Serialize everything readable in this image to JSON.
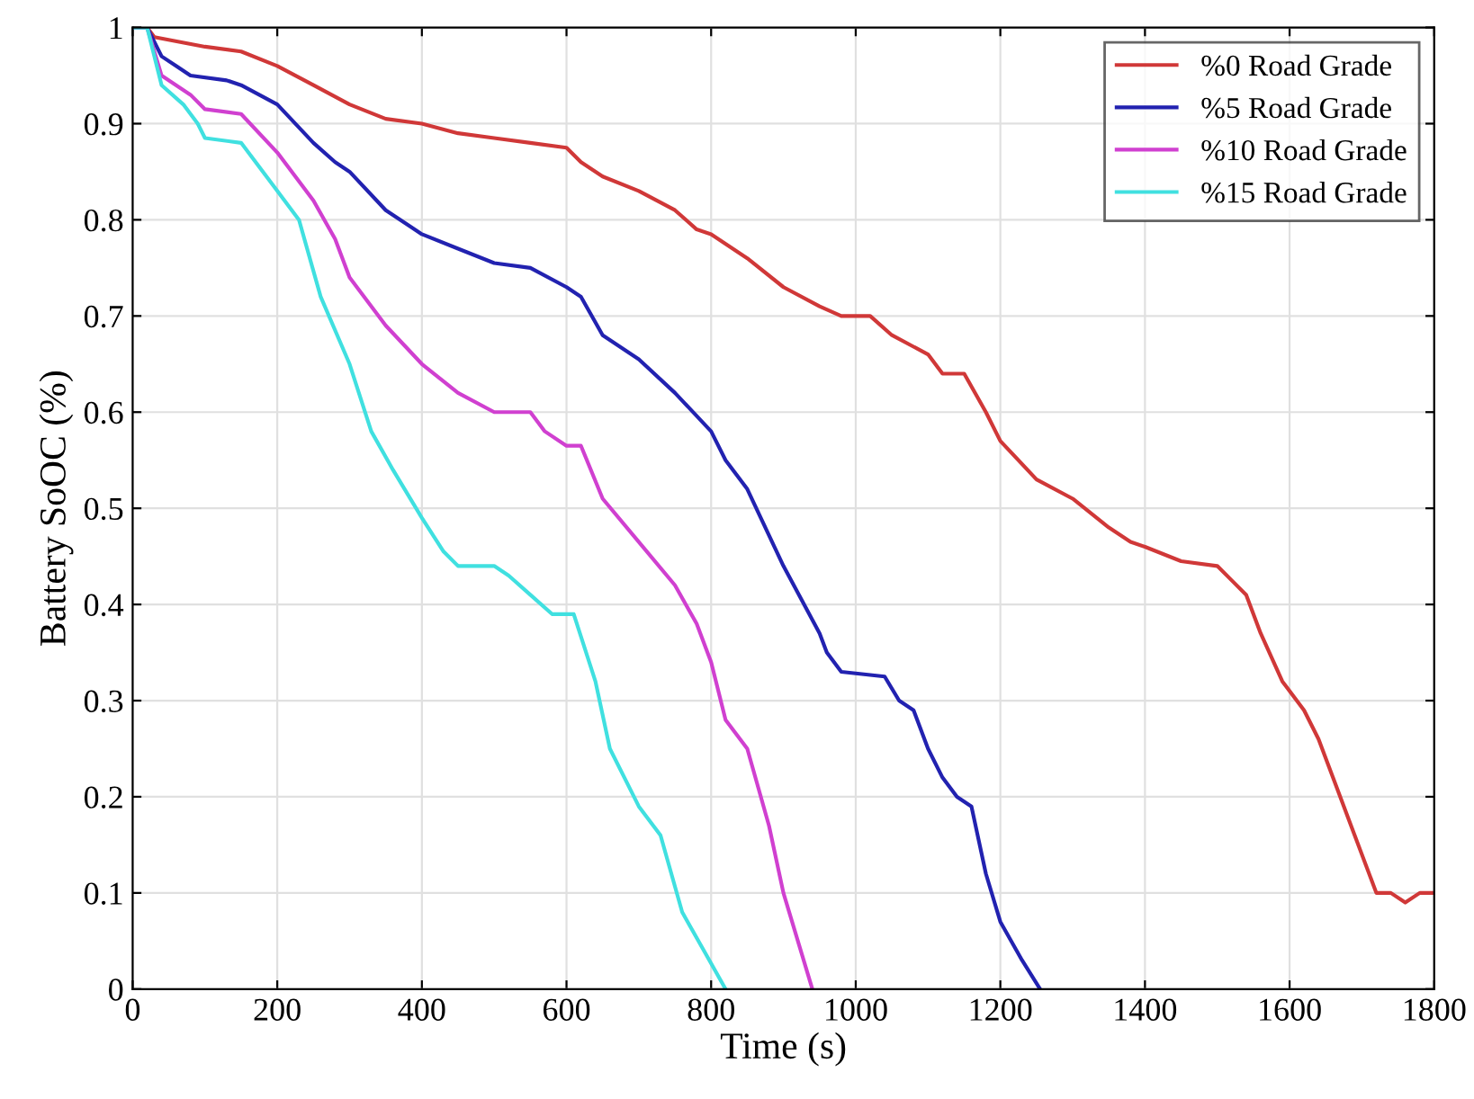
{
  "chart_data": {
    "type": "line",
    "xlabel": "Time (s)",
    "ylabel": "Battery SoOC (%)",
    "xlim": [
      0,
      1800
    ],
    "xticks": [
      0,
      200,
      400,
      600,
      800,
      1000,
      1200,
      1400,
      1600,
      1800
    ],
    "ylim": [
      0,
      1
    ],
    "yticks": [
      0,
      0.1,
      0.2,
      0.3,
      0.4,
      0.5,
      0.6,
      0.7,
      0.8,
      0.9,
      1
    ],
    "grid": true,
    "legend": "top right",
    "marker": "none",
    "line_style": "solid",
    "series": [
      {
        "name": "%0 Road Grade",
        "color": "#d03838",
        "x": [
          0,
          20,
          30,
          100,
          150,
          200,
          250,
          300,
          350,
          400,
          450,
          500,
          550,
          600,
          620,
          650,
          700,
          750,
          780,
          800,
          850,
          900,
          950,
          980,
          1020,
          1050,
          1100,
          1120,
          1150,
          1180,
          1200,
          1250,
          1300,
          1350,
          1380,
          1400,
          1450,
          1500,
          1520,
          1540,
          1560,
          1590,
          1620,
          1640,
          1660,
          1690,
          1720,
          1740,
          1760,
          1780,
          1800
        ],
        "values": [
          1,
          1,
          0.99,
          0.98,
          0.975,
          0.96,
          0.94,
          0.92,
          0.905,
          0.9,
          0.89,
          0.885,
          0.88,
          0.875,
          0.86,
          0.845,
          0.83,
          0.81,
          0.79,
          0.785,
          0.76,
          0.73,
          0.71,
          0.7,
          0.7,
          0.68,
          0.66,
          0.64,
          0.64,
          0.6,
          0.57,
          0.53,
          0.51,
          0.48,
          0.465,
          0.46,
          0.445,
          0.44,
          0.425,
          0.41,
          0.37,
          0.32,
          0.29,
          0.26,
          0.22,
          0.16,
          0.1,
          0.1,
          0.09,
          0.1,
          0.1
        ]
      },
      {
        "name": "%5 Road Grade",
        "color": "#2222b0",
        "x": [
          0,
          20,
          40,
          60,
          80,
          130,
          150,
          200,
          250,
          280,
          300,
          350,
          400,
          450,
          500,
          550,
          600,
          620,
          650,
          700,
          750,
          800,
          820,
          850,
          900,
          950,
          960,
          980,
          1040,
          1060,
          1080,
          1100,
          1120,
          1140,
          1160,
          1180,
          1200,
          1230,
          1255
        ],
        "values": [
          1,
          1,
          0.97,
          0.96,
          0.95,
          0.945,
          0.94,
          0.92,
          0.88,
          0.86,
          0.85,
          0.81,
          0.785,
          0.77,
          0.755,
          0.75,
          0.73,
          0.72,
          0.68,
          0.655,
          0.62,
          0.58,
          0.55,
          0.52,
          0.44,
          0.37,
          0.35,
          0.33,
          0.325,
          0.3,
          0.29,
          0.25,
          0.22,
          0.2,
          0.19,
          0.12,
          0.07,
          0.03,
          0
        ]
      },
      {
        "name": "%10 Road Grade",
        "color": "#d040d0",
        "x": [
          0,
          20,
          40,
          80,
          100,
          150,
          200,
          250,
          280,
          300,
          350,
          400,
          450,
          500,
          550,
          570,
          600,
          620,
          650,
          700,
          750,
          780,
          800,
          820,
          850,
          880,
          900,
          920,
          940
        ],
        "values": [
          1,
          1,
          0.95,
          0.93,
          0.915,
          0.91,
          0.87,
          0.82,
          0.78,
          0.74,
          0.69,
          0.65,
          0.62,
          0.6,
          0.6,
          0.58,
          0.565,
          0.565,
          0.51,
          0.465,
          0.42,
          0.38,
          0.34,
          0.28,
          0.25,
          0.17,
          0.1,
          0.05,
          0
        ]
      },
      {
        "name": "%15 Road Grade",
        "color": "#40e0e0",
        "x": [
          0,
          20,
          40,
          70,
          90,
          100,
          150,
          200,
          230,
          260,
          300,
          330,
          360,
          400,
          430,
          450,
          500,
          520,
          550,
          580,
          610,
          640,
          660,
          700,
          730,
          760,
          790,
          820
        ],
        "values": [
          1,
          1,
          0.94,
          0.92,
          0.9,
          0.885,
          0.88,
          0.83,
          0.8,
          0.72,
          0.65,
          0.58,
          0.54,
          0.49,
          0.455,
          0.44,
          0.44,
          0.43,
          0.41,
          0.39,
          0.39,
          0.32,
          0.25,
          0.19,
          0.16,
          0.08,
          0.04,
          0
        ]
      }
    ]
  }
}
